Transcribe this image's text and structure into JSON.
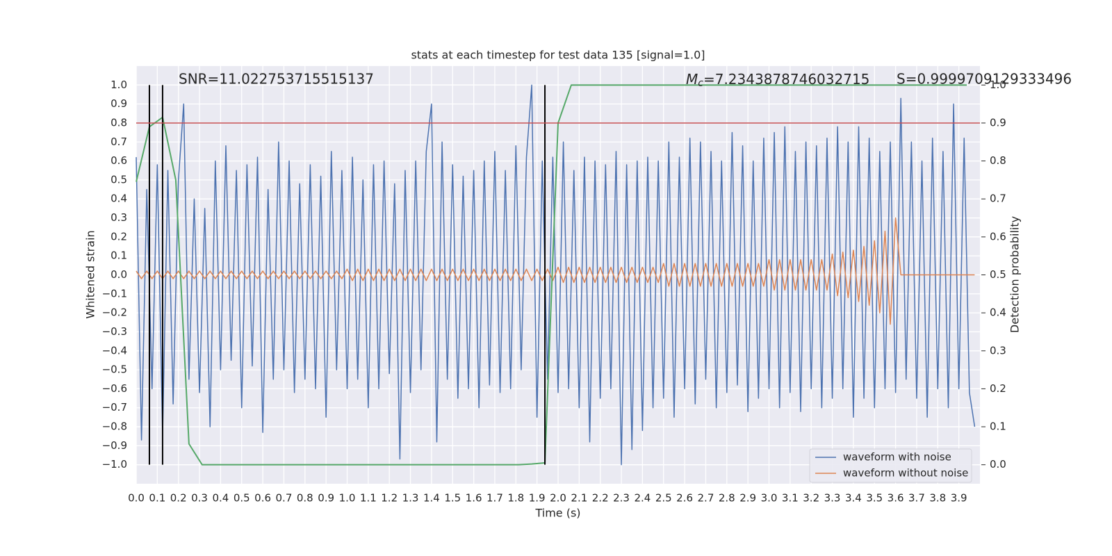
{
  "chart_data": {
    "type": "line",
    "title": "stats at each timestep for test data 135 [signal=1.0]",
    "xlabel": "Time (s)",
    "ylabel": "Whitened strain",
    "y2label": "Detection probability",
    "annotations": {
      "snr": "SNR=11.022753715515137",
      "mc": {
        "symbol": "M",
        "subscript": "c",
        "text": "=7.2343878746032715"
      },
      "s": "S=0.9999709129333496"
    },
    "xlim": [
      0,
      4.0
    ],
    "ylim": [
      -1.1,
      1.1
    ],
    "y2lim": [
      -0.05,
      1.05
    ],
    "grid": true,
    "legend": "lower right",
    "xticks": [
      {
        "value": 0,
        "label": "0.0"
      },
      0.1,
      0.2,
      0.3,
      0.4,
      0.5,
      0.6,
      0.7,
      0.8,
      0.9,
      {
        "value": 1,
        "label": "1.0"
      },
      1.1,
      1.2,
      1.3,
      1.4,
      1.5,
      1.6,
      1.7,
      1.8,
      1.9,
      {
        "value": 2,
        "label": "2.0"
      },
      2.1,
      2.2,
      2.3,
      2.4,
      2.5,
      2.6,
      2.7,
      2.8,
      2.9,
      {
        "value": 3,
        "label": "3.0"
      },
      3.1,
      3.2,
      3.3,
      3.4,
      3.5,
      3.6,
      3.7,
      3.8,
      3.9
    ],
    "yticks": [
      {
        "value": 1,
        "label": "1.0"
      },
      0.9,
      0.8,
      0.7,
      0.6,
      0.5,
      0.4,
      0.3,
      0.2,
      0.1,
      {
        "value": 0,
        "label": "0.0"
      },
      {
        "value": -0.1,
        "label": "−0.1"
      },
      {
        "value": -0.2,
        "label": "−0.2"
      },
      {
        "value": -0.3,
        "label": "−0.3"
      },
      {
        "value": -0.4,
        "label": "−0.4"
      },
      {
        "value": -0.5,
        "label": "−0.5"
      },
      {
        "value": -0.6,
        "label": "−0.6"
      },
      {
        "value": -0.7,
        "label": "−0.7"
      },
      {
        "value": -0.8,
        "label": "−0.8"
      },
      {
        "value": -0.9,
        "label": "−0.9"
      },
      {
        "value": -1,
        "label": "−1.0"
      }
    ],
    "y2ticks": [
      {
        "value": 0,
        "label": "0.0"
      },
      0.1,
      0.2,
      0.3,
      0.4,
      0.5,
      0.6,
      0.7,
      0.8,
      0.9,
      {
        "value": 1,
        "label": "1.0"
      }
    ],
    "x": [
      0,
      0.025,
      0.05,
      0.075,
      0.1,
      0.125,
      0.15,
      0.175,
      0.2,
      0.225,
      0.25,
      0.275,
      0.3,
      0.325,
      0.35,
      0.375,
      0.4,
      0.425,
      0.45,
      0.475,
      0.5,
      0.525,
      0.55,
      0.575,
      0.6,
      0.625,
      0.65,
      0.675,
      0.7,
      0.725,
      0.75,
      0.775,
      0.8,
      0.825,
      0.85,
      0.875,
      0.9,
      0.925,
      0.95,
      0.975,
      1,
      1.025,
      1.05,
      1.075,
      1.1,
      1.125,
      1.15,
      1.175,
      1.2,
      1.225,
      1.25,
      1.275,
      1.3,
      1.325,
      1.35,
      1.375,
      1.4,
      1.425,
      1.45,
      1.475,
      1.5,
      1.525,
      1.55,
      1.575,
      1.6,
      1.625,
      1.65,
      1.675,
      1.7,
      1.725,
      1.75,
      1.775,
      1.8,
      1.825,
      1.85,
      1.875,
      1.9,
      1.925,
      1.95,
      1.975,
      2,
      2.025,
      2.05,
      2.075,
      2.1,
      2.125,
      2.15,
      2.175,
      2.2,
      2.225,
      2.25,
      2.275,
      2.3,
      2.325,
      2.35,
      2.375,
      2.4,
      2.425,
      2.45,
      2.475,
      2.5,
      2.525,
      2.55,
      2.575,
      2.6,
      2.625,
      2.65,
      2.675,
      2.7,
      2.725,
      2.75,
      2.775,
      2.8,
      2.825,
      2.85,
      2.875,
      2.9,
      2.925,
      2.95,
      2.975,
      3,
      3.025,
      3.05,
      3.075,
      3.1,
      3.125,
      3.15,
      3.175,
      3.2,
      3.225,
      3.25,
      3.275,
      3.3,
      3.325,
      3.35,
      3.375,
      3.4,
      3.425,
      3.45,
      3.475,
      3.5,
      3.525,
      3.55,
      3.575,
      3.6,
      3.625,
      3.65,
      3.675,
      3.7,
      3.725,
      3.75,
      3.775,
      3.8,
      3.825,
      3.85,
      3.875,
      3.9,
      3.925,
      3.95,
      3.975
    ],
    "series": [
      {
        "name": "waveform with noise",
        "color": "#4c72b0",
        "values": [
          0.62,
          -0.87,
          0.45,
          -0.6,
          0.58,
          -0.85,
          0.55,
          -0.68,
          0.5,
          0.9,
          -0.55,
          0.4,
          -0.62,
          0.35,
          -0.8,
          0.6,
          -0.5,
          0.68,
          -0.45,
          0.55,
          -0.7,
          0.58,
          -0.48,
          0.62,
          -0.83,
          0.45,
          -0.55,
          0.7,
          -0.5,
          0.6,
          -0.62,
          0.48,
          -0.55,
          0.58,
          -0.6,
          0.52,
          -0.75,
          0.65,
          -0.5,
          0.55,
          -0.6,
          0.62,
          -0.55,
          0.5,
          -0.7,
          0.58,
          -0.6,
          0.6,
          -0.52,
          0.48,
          -0.97,
          0.55,
          -0.62,
          0.6,
          -0.5,
          0.65,
          0.9,
          -0.88,
          0.7,
          -0.55,
          0.58,
          -0.65,
          0.52,
          -0.6,
          0.55,
          -0.7,
          0.6,
          -0.58,
          0.65,
          -0.62,
          0.55,
          -0.6,
          0.68,
          -0.5,
          0.62,
          1.0,
          -0.75,
          0.6,
          -0.55,
          0.62,
          -0.62,
          0.7,
          -0.6,
          0.55,
          -0.7,
          0.62,
          -0.88,
          0.6,
          -0.65,
          0.58,
          -0.6,
          0.65,
          -1.0,
          0.58,
          -0.92,
          0.6,
          -0.82,
          0.62,
          -0.7,
          0.6,
          -0.65,
          0.7,
          -0.75,
          0.62,
          -0.6,
          0.72,
          -0.68,
          0.7,
          -0.55,
          0.65,
          -0.7,
          0.6,
          -0.62,
          0.75,
          -0.58,
          0.68,
          -0.72,
          0.6,
          -0.65,
          0.72,
          -0.6,
          0.75,
          -0.7,
          0.78,
          -0.62,
          0.65,
          -0.72,
          0.7,
          -0.6,
          0.68,
          -0.7,
          0.72,
          -0.65,
          0.78,
          -0.6,
          0.7,
          -0.75,
          0.78,
          -0.65,
          0.72,
          -0.7,
          0.65,
          -0.6,
          0.7,
          -0.62,
          0.93,
          -0.55,
          0.7,
          -0.65,
          0.6,
          -0.75,
          0.72,
          -0.6,
          0.65,
          -0.7,
          0.9,
          -0.6,
          0.72,
          -0.62,
          -0.8
        ]
      },
      {
        "name": "waveform without noise",
        "color": "#dd8452",
        "values": [
          0.02,
          -0.02,
          0.02,
          -0.02,
          0.02,
          -0.02,
          0.02,
          -0.02,
          0.02,
          -0.02,
          0.02,
          -0.02,
          0.02,
          -0.02,
          0.02,
          -0.02,
          0.02,
          -0.02,
          0.02,
          -0.02,
          0.02,
          -0.02,
          0.02,
          -0.02,
          0.02,
          -0.02,
          0.02,
          -0.02,
          0.02,
          -0.02,
          0.02,
          -0.02,
          0.02,
          -0.02,
          0.02,
          -0.02,
          0.02,
          -0.02,
          0.02,
          -0.02,
          0.03,
          -0.03,
          0.03,
          -0.03,
          0.03,
          -0.03,
          0.03,
          -0.03,
          0.03,
          -0.03,
          0.03,
          -0.03,
          0.03,
          -0.03,
          0.03,
          -0.03,
          0.03,
          -0.03,
          0.03,
          -0.03,
          0.03,
          -0.03,
          0.03,
          -0.03,
          0.03,
          -0.03,
          0.03,
          -0.03,
          0.03,
          -0.03,
          0.03,
          -0.03,
          0.03,
          -0.03,
          0.03,
          -0.03,
          0.03,
          -0.03,
          0.03,
          -0.03,
          0.04,
          -0.04,
          0.04,
          -0.04,
          0.04,
          -0.04,
          0.04,
          -0.04,
          0.04,
          -0.04,
          0.04,
          -0.04,
          0.04,
          -0.04,
          0.04,
          -0.04,
          0.04,
          -0.04,
          0.04,
          -0.04,
          0.06,
          -0.06,
          0.06,
          -0.06,
          0.06,
          -0.06,
          0.06,
          -0.06,
          0.06,
          -0.06,
          0.06,
          -0.06,
          0.06,
          -0.06,
          0.06,
          -0.06,
          0.06,
          -0.06,
          0.06,
          -0.06,
          0.08,
          -0.08,
          0.08,
          -0.08,
          0.08,
          -0.08,
          0.08,
          -0.08,
          0.08,
          -0.08,
          0.08,
          -0.08,
          0.11,
          -0.11,
          0.12,
          -0.12,
          0.13,
          -0.14,
          0.15,
          -0.16,
          0.18,
          -0.2,
          0.23,
          -0.26,
          0.3,
          0,
          0,
          0,
          0,
          0,
          0,
          0,
          0,
          0,
          0,
          0,
          0,
          0,
          0,
          0
        ]
      },
      {
        "color": "#55a868",
        "axis": "y2",
        "x": [
          0,
          0.0625,
          0.125,
          0.1875,
          0.25,
          0.3125,
          0.375,
          0.4375,
          0.5,
          0.5625,
          0.625,
          0.6875,
          0.75,
          0.8125,
          0.875,
          0.9375,
          1,
          1.0625,
          1.125,
          1.1875,
          1.25,
          1.3125,
          1.375,
          1.4375,
          1.5,
          1.5625,
          1.625,
          1.6875,
          1.75,
          1.8125,
          1.875,
          1.9375,
          2,
          2.0625,
          2.125,
          2.1875,
          2.25,
          2.3125,
          2.375,
          2.4375,
          2.5,
          2.5625,
          2.625,
          2.6875,
          2.75,
          2.8125,
          2.875,
          2.9375,
          3,
          3.0625,
          3.125,
          3.1875,
          3.25,
          3.3125,
          3.375,
          3.4375,
          3.5,
          3.5625,
          3.625,
          3.6875,
          3.75,
          3.8125,
          3.875,
          3.9375
        ],
        "values": [
          0.745,
          0.89,
          0.915,
          0.75,
          0.055,
          0,
          0,
          0,
          0,
          0,
          0,
          0,
          0,
          0,
          0,
          0,
          0,
          0,
          0,
          0,
          0,
          0,
          0,
          0,
          0,
          0,
          0,
          0,
          0,
          0,
          0.002,
          0.005,
          0.9,
          1,
          1,
          1,
          1,
          1,
          1,
          1,
          1,
          1,
          1,
          1,
          1,
          1,
          1,
          1,
          1,
          1,
          1,
          1,
          1,
          1,
          1,
          1,
          1,
          1,
          1,
          1,
          1,
          1,
          1,
          1
        ]
      }
    ],
    "vlines": {
      "color": "#000000",
      "values": [
        0.0625,
        0.125,
        1.9375
      ]
    },
    "hline": {
      "color": "#c44e52",
      "axis": "y2",
      "value": 0.9
    }
  }
}
